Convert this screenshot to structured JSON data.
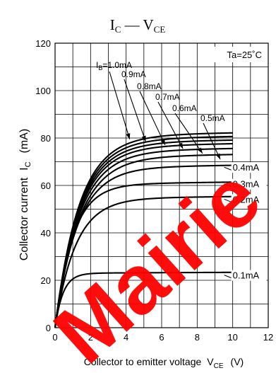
{
  "chart_data": {
    "type": "line",
    "title": "I",
    "title_sub1": "C",
    "title_mid": " — V",
    "title_sub2": "CE",
    "xlabel": "Collector to emitter voltage",
    "xlabel_sym": "V",
    "xlabel_sub": "CE",
    "xlabel_unit": "(V)",
    "ylabel": "Collector current",
    "ylabel_sym": "I",
    "ylabel_sub": "C",
    "ylabel_unit": "(mA)",
    "xlim": [
      0,
      12
    ],
    "ylim": [
      0,
      120
    ],
    "x_ticks": [
      "0",
      "2",
      "4",
      "6",
      "8",
      "10",
      "12"
    ],
    "y_ticks": [
      "0",
      "20",
      "40",
      "60",
      "80",
      "100",
      "120"
    ],
    "grid": true,
    "annotation": "Ta=25˚C",
    "ib_prefix": "I",
    "ib_sub": "B",
    "ib_suffix": "=1.0mA",
    "series": [
      {
        "name": "0.1mA",
        "sat": 23,
        "v0": 0.45
      },
      {
        "name": "0.2mA",
        "sat": 54.5,
        "v0": 1.15
      },
      {
        "name": "0.3mA",
        "sat": 60.5,
        "v0": 1.0
      },
      {
        "name": "0.4mA",
        "sat": 67.5,
        "v0": 1.25
      },
      {
        "name": "0.5mA",
        "sat": 72,
        "v0": 1.35
      },
      {
        "name": "0.6mA",
        "sat": 74.5,
        "v0": 1.35
      },
      {
        "name": "0.7mA",
        "sat": 76.5,
        "v0": 1.35
      },
      {
        "name": "0.8mA",
        "sat": 78,
        "v0": 1.35
      },
      {
        "name": "0.9mA",
        "sat": 79.5,
        "v0": 1.35
      },
      {
        "name": "1.0mA",
        "sat": 81,
        "v0": 1.35
      }
    ],
    "x_max_data": 10,
    "right_labels": [
      "0.4mA",
      "0.3mA",
      "0.2mA",
      "0.1mA"
    ],
    "top_labels": [
      "0.9mA",
      "0.8mA",
      "0.7mA",
      "0.6mA",
      "0.5mA"
    ]
  },
  "watermark": "Mairie",
  "colors": {
    "curve": "#000000",
    "watermark": "#ff0000",
    "grid": "#000000"
  }
}
